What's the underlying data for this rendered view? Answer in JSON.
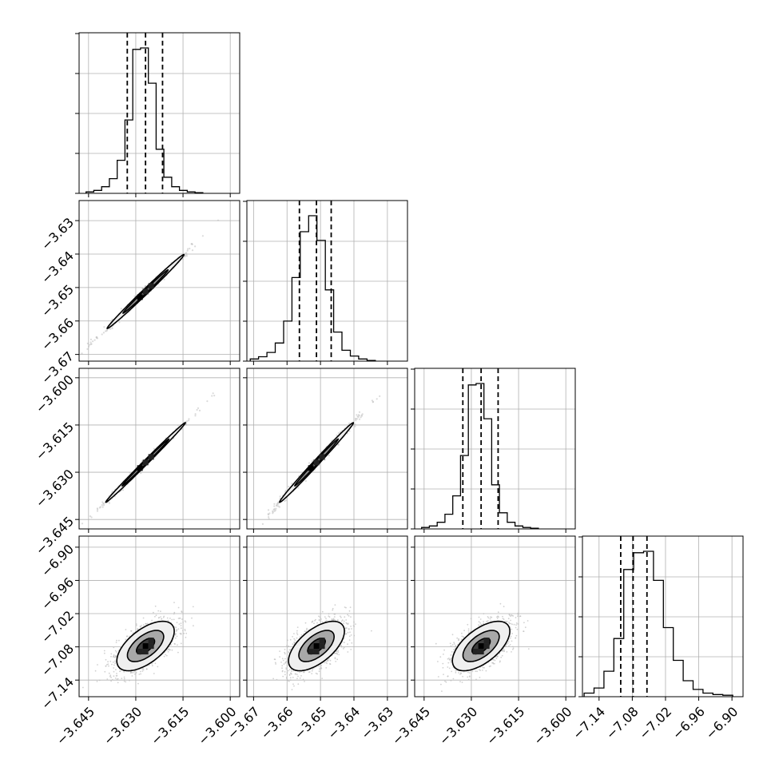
{
  "chart_data": {
    "type": "corner",
    "title": "",
    "colors": {
      "ink": "#000000",
      "grid": "#b0b0b0",
      "points": "#bdbdbd",
      "background": "#ffffff"
    },
    "grid": true,
    "quantile_lines": "dashed",
    "variables": [
      {
        "id": "p0",
        "range": [
          -3.648,
          -3.597
        ],
        "ticks": [
          -3.645,
          -3.63,
          -3.615,
          -3.6
        ],
        "tick_labels": [
          "−3.645",
          "−3.630",
          "−3.615",
          "−3.600"
        ],
        "quantiles": [
          -3.6327,
          -3.6269,
          -3.6215
        ],
        "hist": {
          "range": [
            -3.6458,
            -3.6087
          ],
          "counts": [
            2,
            4,
            9,
            20,
            45,
            100,
            196,
            198,
            150,
            60,
            22,
            9,
            4,
            2,
            1
          ]
        }
      },
      {
        "id": "p1",
        "range": [
          -3.672,
          -3.624
        ],
        "ticks": [
          -3.67,
          -3.66,
          -3.65,
          -3.64,
          -3.63
        ],
        "tick_labels": [
          "−3.67",
          "−3.66",
          "−3.65",
          "−3.64",
          "−3.63"
        ],
        "quantiles": [
          -3.6563,
          -3.6512,
          -3.6468
        ],
        "hist": {
          "range": [
            -3.671,
            -3.6336
          ],
          "counts": [
            3,
            6,
            12,
            25,
            55,
            115,
            178,
            200,
            166,
            98,
            40,
            15,
            7,
            3,
            1
          ]
        }
      },
      {
        "id": "p2",
        "range": [
          -3.648,
          -3.597
        ],
        "ticks": [
          -3.645,
          -3.63,
          -3.615,
          -3.6
        ],
        "tick_labels": [
          "−3.645",
          "−3.630",
          "−3.615",
          "−3.600"
        ],
        "quantiles": [
          -3.6327,
          -3.6269,
          -3.6215
        ],
        "hist": {
          "range": [
            -3.6458,
            -3.6087
          ],
          "counts": [
            2,
            4,
            9,
            20,
            45,
            100,
            196,
            198,
            150,
            60,
            22,
            9,
            4,
            2,
            1
          ]
        }
      },
      {
        "id": "p3",
        "range": [
          -7.17,
          -6.88
        ],
        "ticks": [
          -7.14,
          -7.08,
          -7.02,
          -6.96,
          -6.9
        ],
        "tick_labels": [
          "−7.14",
          "−7.08",
          "−7.02",
          "−6.96",
          "−6.90"
        ],
        "quantiles": [
          -7.1009,
          -7.0785,
          -7.0535
        ],
        "hist": {
          "range": [
            -7.167,
            -6.8986
          ],
          "counts": [
            5,
            12,
            35,
            80,
            175,
            198,
            200,
            160,
            95,
            50,
            22,
            10,
            5,
            3,
            2
          ]
        }
      }
    ],
    "pairs": [
      {
        "x": 0,
        "y": 1,
        "center": [
          -3.6269,
          -3.6512
        ],
        "spread": [
          0.0053,
          0.0048
        ],
        "rho": 0.995,
        "point_count": 450
      },
      {
        "x": 0,
        "y": 2,
        "center": [
          -3.6269,
          -3.6269
        ],
        "spread": [
          0.0055,
          0.0055
        ],
        "rho": 0.997,
        "point_count": 450
      },
      {
        "x": 1,
        "y": 2,
        "center": [
          -3.6512,
          -3.6269
        ],
        "spread": [
          0.0048,
          0.0055
        ],
        "rho": 0.995,
        "point_count": 450
      },
      {
        "x": 0,
        "y": 3,
        "center": [
          -3.6269,
          -7.0785
        ],
        "spread": [
          0.0048,
          0.0235
        ],
        "rho": 0.6,
        "point_count": 1400
      },
      {
        "x": 1,
        "y": 3,
        "center": [
          -3.6512,
          -7.0785
        ],
        "spread": [
          0.0044,
          0.0235
        ],
        "rho": 0.6,
        "point_count": 1400
      },
      {
        "x": 2,
        "y": 3,
        "center": [
          -3.6269,
          -7.0785
        ],
        "spread": [
          0.0048,
          0.0235
        ],
        "rho": 0.6,
        "point_count": 1400
      }
    ]
  }
}
